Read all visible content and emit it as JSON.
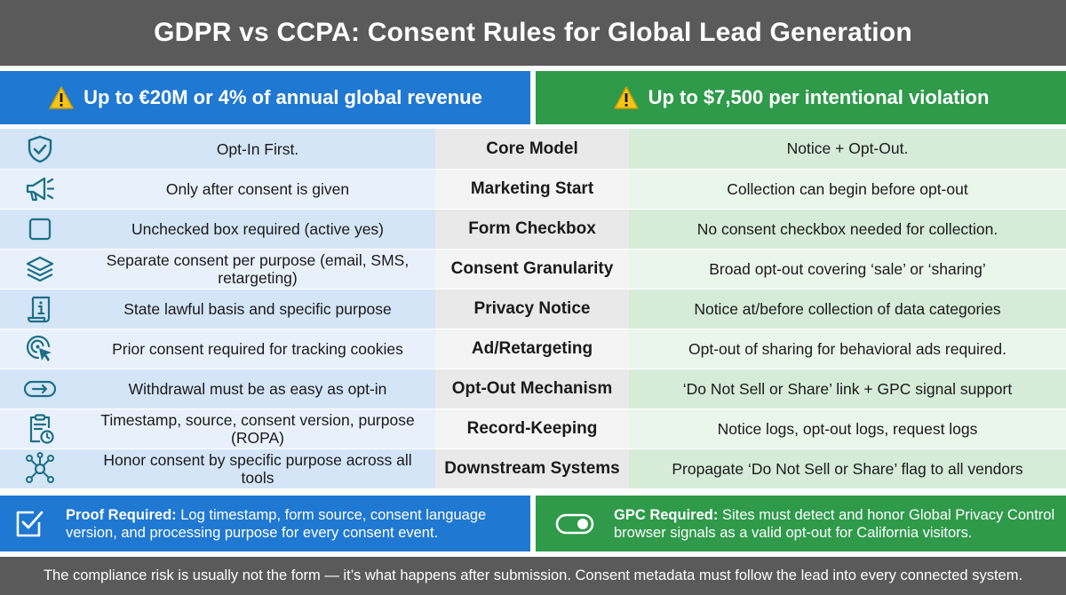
{
  "title": "GDPR vs CCPA: Consent Rules for Global Lead Generation",
  "colors": {
    "gdpr_blue": "#1f78d1",
    "ccpa_green": "#2e9a4a",
    "title_gray": "#5a5a5a",
    "icon_teal": "#1c6f86"
  },
  "gdpr_header": {
    "icon": "warning-icon",
    "text": "Up to €20M or 4% of annual global revenue"
  },
  "ccpa_header": {
    "icon": "warning-icon",
    "text": "Up to $7,500 per intentional violation"
  },
  "rows": [
    {
      "icon": "shield-check-icon",
      "gdpr": "Opt-In First.",
      "topic": "Core Model",
      "ccpa": "Notice + Opt-Out."
    },
    {
      "icon": "megaphone-icon",
      "gdpr": "Only after consent is given",
      "topic": "Marketing Start",
      "ccpa": "Collection can begin before opt-out"
    },
    {
      "icon": "checkbox-icon",
      "gdpr": "Unchecked box required (active yes)",
      "topic": "Form Checkbox",
      "ccpa": "No consent checkbox needed for collection."
    },
    {
      "icon": "layers-icon",
      "gdpr": "Separate consent per purpose (email, SMS, retargeting)",
      "topic": "Consent Granularity",
      "ccpa": "Broad opt-out covering ‘sale’ or ‘sharing’"
    },
    {
      "icon": "info-scroll-icon",
      "gdpr": "State lawful basis and specific purpose",
      "topic": "Privacy Notice",
      "ccpa": "Notice at/before collection of data categories"
    },
    {
      "icon": "target-cursor-icon",
      "gdpr": "Prior consent required for tracking cookies",
      "topic": "Ad/Retargeting",
      "ccpa": "Opt-out of sharing for behavioral ads required."
    },
    {
      "icon": "toggle-arrow-icon",
      "gdpr": "Withdrawal must be as easy as opt-in",
      "topic": "Opt-Out Mechanism",
      "ccpa": "‘Do Not Sell or Share’ link + GPC signal support"
    },
    {
      "icon": "clipboard-clock-icon",
      "gdpr": "Timestamp, source, consent version, purpose (ROPA)",
      "topic": "Record-Keeping",
      "ccpa": "Notice logs, opt-out logs, request logs"
    },
    {
      "icon": "network-icon",
      "gdpr": "Honor consent by specific purpose across all tools",
      "topic": "Downstream Systems",
      "ccpa": "Propagate ‘Do Not Sell or Share’ flag to all vendors"
    }
  ],
  "gdpr_footer": {
    "icon": "checkbox-checked-icon",
    "label": "Proof Required:",
    "text": " Log timestamp, form source, consent language version, and processing purpose for every consent event."
  },
  "ccpa_footer": {
    "icon": "toggle-switch-icon",
    "label": "GPC Required:",
    "text": " Sites must detect and honor Global Privacy Control browser signals as a valid opt-out for California visitors."
  },
  "bottom_note": "The compliance risk is usually not the form — it’s what happens after submission. Consent metadata must follow the lead into every connected system."
}
